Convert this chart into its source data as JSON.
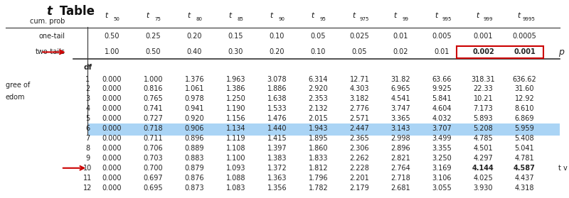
{
  "title_t": "t",
  "title_table": " Table",
  "col_headers_subscript": [
    "50",
    "75",
    "80",
    "85",
    "90",
    "95",
    "975",
    "99",
    "995",
    "999",
    "9995"
  ],
  "one_tail": [
    "0.50",
    "0.25",
    "0.20",
    "0.15",
    "0.10",
    "0.05",
    "0.025",
    "0.01",
    "0.005",
    "0.001",
    "0.0005"
  ],
  "two_tails": [
    "1.00",
    "0.50",
    "0.40",
    "0.30",
    "0.20",
    "0.10",
    "0.05",
    "0.02",
    "0.01",
    "0.002",
    "0.001"
  ],
  "df_values": [
    1,
    2,
    3,
    4,
    5,
    6,
    7,
    8,
    9,
    10,
    11,
    12
  ],
  "table_data": [
    [
      0.0,
      1.0,
      1.376,
      1.963,
      3.078,
      6.314,
      12.71,
      31.82,
      63.66,
      318.31,
      636.62
    ],
    [
      0.0,
      0.816,
      1.061,
      1.386,
      1.886,
      2.92,
      4.303,
      6.965,
      9.925,
      22.327,
      31.599
    ],
    [
      0.0,
      0.765,
      0.978,
      1.25,
      1.638,
      2.353,
      3.182,
      4.541,
      5.841,
      10.215,
      12.924
    ],
    [
      0.0,
      0.741,
      0.941,
      1.19,
      1.533,
      2.132,
      2.776,
      3.747,
      4.604,
      7.173,
      8.61
    ],
    [
      0.0,
      0.727,
      0.92,
      1.156,
      1.476,
      2.015,
      2.571,
      3.365,
      4.032,
      5.893,
      6.869
    ],
    [
      0.0,
      0.718,
      0.906,
      1.134,
      1.44,
      1.943,
      2.447,
      3.143,
      3.707,
      5.208,
      5.959
    ],
    [
      0.0,
      0.711,
      0.896,
      1.119,
      1.415,
      1.895,
      2.365,
      2.998,
      3.499,
      4.785,
      5.408
    ],
    [
      0.0,
      0.706,
      0.889,
      1.108,
      1.397,
      1.86,
      2.306,
      2.896,
      3.355,
      4.501,
      5.041
    ],
    [
      0.0,
      0.703,
      0.883,
      1.1,
      1.383,
      1.833,
      2.262,
      2.821,
      3.25,
      4.297,
      4.781
    ],
    [
      0.0,
      0.7,
      0.879,
      1.093,
      1.372,
      1.812,
      2.228,
      2.764,
      3.169,
      4.144,
      4.587
    ],
    [
      0.0,
      0.697,
      0.876,
      1.088,
      1.363,
      1.796,
      2.201,
      2.718,
      3.106,
      4.025,
      4.437
    ],
    [
      0.0,
      0.695,
      0.873,
      1.083,
      1.356,
      1.782,
      2.179,
      2.681,
      3.055,
      3.93,
      4.318
    ]
  ],
  "highlight_rows": [
    6,
    7,
    8,
    9,
    10
  ],
  "highlight_row_color": "#aad4f5",
  "box_color": "#cc0000",
  "arrow_color": "#cc0000",
  "label_left_text1": "gree of",
  "label_left_text2": "edom",
  "label_right_text": "t v",
  "p_label": "p",
  "bg_color": "#ffffff",
  "text_color": "#222222"
}
